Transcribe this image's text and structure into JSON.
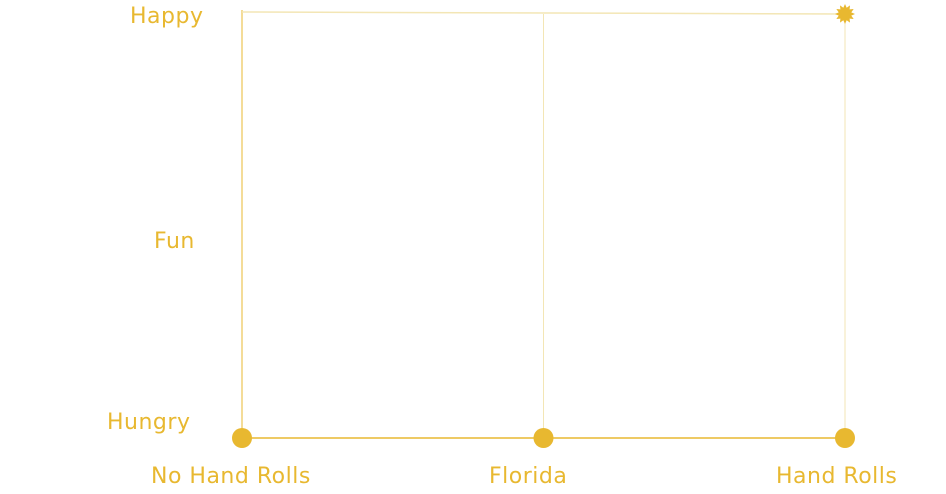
{
  "chart_data": {
    "type": "line",
    "x_categories": [
      "No Hand Rolls",
      "Florida",
      "Hand Rolls"
    ],
    "y_categories": [
      "Hungry",
      "Fun",
      "Happy"
    ],
    "series": [
      {
        "points": [
          {
            "x": "No Hand Rolls",
            "y": "Hungry"
          },
          {
            "x": "Florida",
            "y": "Hungry"
          },
          {
            "x": "Hand Rolls",
            "y": "Hungry"
          }
        ],
        "highlight": {
          "x": "Hand Rolls",
          "y": "Happy",
          "marker": "starburst-icon"
        }
      }
    ],
    "title": "",
    "xlabel": "",
    "ylabel": "",
    "grid": true,
    "legend": "none"
  },
  "colors": {
    "accent": "#e8b830",
    "grid": "#f3e6b5"
  }
}
